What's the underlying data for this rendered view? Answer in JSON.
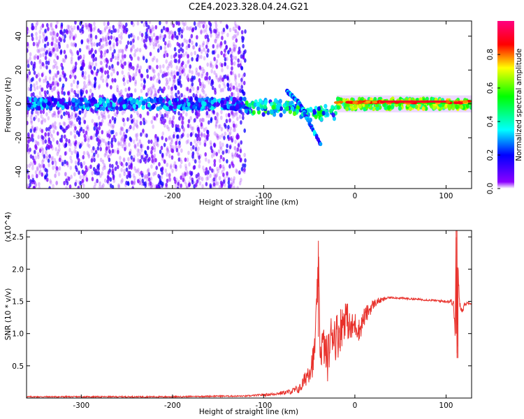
{
  "title": "C2E4.2023.328.04.24.G21",
  "chart_data": [
    {
      "type": "heatmap",
      "xlabel": "Height of straight line (km)",
      "ylabel": "Frequency (Hz)",
      "xlim": [
        -360,
        128
      ],
      "ylim": [
        -50,
        49
      ],
      "x_ticks": [
        -300,
        -200,
        -100,
        0,
        100
      ],
      "y_ticks": [
        -40,
        -20,
        0,
        20,
        40
      ],
      "colorbar": {
        "label": "Normalized spectral amplitude",
        "range": [
          0,
          1
        ],
        "ticks": [
          "0.0",
          "0.2",
          "0.4",
          "0.6",
          "0.8"
        ],
        "colors": [
          "#ffffff",
          "#8a00ff",
          "#0000ff",
          "#00ffff",
          "#00ff00",
          "#ffff00",
          "#ff0000",
          "#ff0080"
        ]
      },
      "features": {
        "noise_region_x": [
          -360,
          -120
        ],
        "signal_band_center_hz": 0,
        "signal_band_width_hz": 6,
        "branch_up": {
          "x": [
            -75,
            -60
          ],
          "y": [
            8,
            0
          ]
        },
        "branch_down": {
          "x": [
            -60,
            -38
          ],
          "y": [
            0,
            -24
          ]
        },
        "strong_segment_x": [
          -20,
          125
        ]
      }
    },
    {
      "type": "line",
      "xlabel": "Height of straight line (km)",
      "ylabel": "SNR (10 * v/v)",
      "y_multiplier": "(x10^4)",
      "xlim": [
        -360,
        128
      ],
      "ylim": [
        0,
        2.6
      ],
      "x_ticks": [
        -300,
        -200,
        -100,
        0,
        100
      ],
      "y_ticks": [
        "0.5",
        "1.0",
        "1.5",
        "2.0",
        "2.5"
      ],
      "color": "#e8302a",
      "series": [
        {
          "x": [
            -360,
            -300,
            -250,
            -200,
            -150,
            -120,
            -100,
            -90,
            -80,
            -70,
            -60,
            -55,
            -50,
            -45,
            -42,
            -40,
            -38,
            -35,
            -30,
            -25,
            -20,
            -15,
            -10,
            -5,
            0,
            5,
            10,
            15,
            20,
            25,
            30,
            35,
            40,
            50,
            60,
            70,
            80,
            90,
            100,
            105,
            108,
            110,
            111,
            112,
            113,
            115,
            118,
            120,
            125,
            128
          ],
          "y": [
            0.02,
            0.02,
            0.02,
            0.02,
            0.03,
            0.03,
            0.05,
            0.06,
            0.08,
            0.1,
            0.15,
            0.28,
            0.45,
            0.6,
            1.3,
            2.15,
            0.7,
            0.85,
            0.6,
            1.05,
            0.95,
            1.1,
            1.3,
            1.05,
            1.15,
            1.05,
            1.25,
            1.35,
            1.45,
            1.5,
            1.52,
            1.55,
            1.56,
            1.55,
            1.54,
            1.53,
            1.52,
            1.51,
            1.5,
            1.5,
            1.48,
            1.0,
            2.6,
            0.62,
            2.0,
            1.45,
            1.35,
            1.45,
            1.48,
            1.47
          ],
          "noise_amplitude": [
            0.01,
            0.01,
            0.01,
            0.01,
            0.01,
            0.01,
            0.02,
            0.02,
            0.03,
            0.04,
            0.08,
            0.12,
            0.2,
            0.25,
            0.3,
            0.3,
            0.3,
            0.3,
            0.35,
            0.35,
            0.4,
            0.35,
            0.3,
            0.25,
            0.2,
            0.18,
            0.15,
            0.12,
            0.08,
            0.05,
            0.04,
            0.02,
            0.015,
            0.015,
            0.015,
            0.015,
            0.015,
            0.015,
            0.02,
            0.04,
            0.06,
            0.1,
            0.1,
            0.1,
            0.1,
            0.06,
            0.04,
            0.03,
            0.02,
            0.02
          ]
        }
      ]
    }
  ]
}
